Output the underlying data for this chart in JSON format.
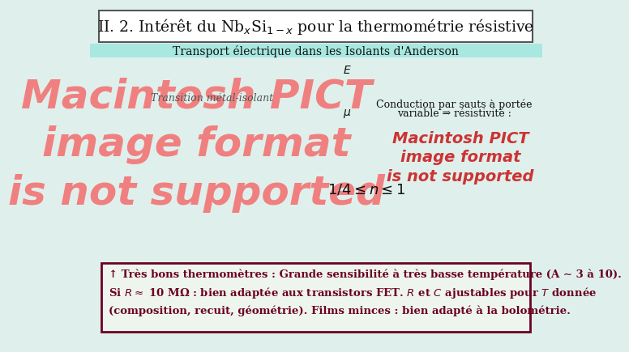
{
  "title": "II. 2. Intérêt du Nb$_x$Si$_{1-x}$ pour la thermométrie résistive",
  "subtitle": "Transport électrique dans les Isolants d'Anderson",
  "bg_color": "#dff0ec",
  "title_box_color": "#ffffff",
  "title_border_color": "#555555",
  "subtitle_bg": "#a8e8e0",
  "diagram_left_label": "Transition métal-isolant",
  "formula_line": "$1/4 \\leq n \\leq 1$",
  "bottom_box_border": "#6b0020",
  "bottom_box_bg": "#eef5ee",
  "bottom_text_color": "#6b0020",
  "bottom_line1": "↑ Très bons thermomètres : Grande sensibilité à très basse température (A ∼ 3 à 10).",
  "bottom_line2": "Si $R \\approx$ 10 MΩ : bien adaptée aux transistors FET. $R$ et $C$ ajustables pour $T$ donnée",
  "bottom_line3": "(composition, recuit, géométrie). Films minces : bien adapté à la bolométrie.",
  "conduction_text_line1": "Conduction par sauts à portée",
  "conduction_text_line2": "variable ⇒ résistivité :",
  "left_pict_color": "#f08080",
  "right_pict_color": "#cc3333",
  "left_diagram_placeholder": "Macintosh PICT\nimage format\nis not supported",
  "right_diagram_placeholder": "Macintosh PICT\nimage format\nis not supported"
}
